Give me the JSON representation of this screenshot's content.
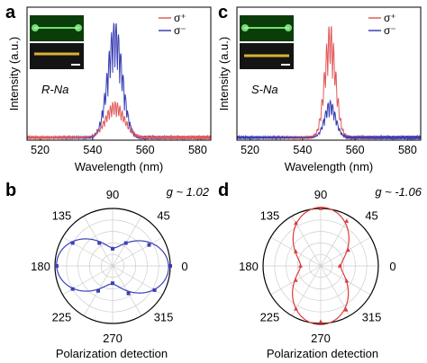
{
  "panels": {
    "a": {
      "letter": "a",
      "sample": "R-Na"
    },
    "b": {
      "letter": "b",
      "g_label": "g ~ 1.02"
    },
    "c": {
      "letter": "c",
      "sample": "S-Na"
    },
    "d": {
      "letter": "d",
      "g_label": "g ~ -1.06"
    }
  },
  "legend": {
    "sigma_plus": "σ⁺",
    "sigma_minus": "σ⁻"
  },
  "colors": {
    "sigma_plus": "#e05a5a",
    "sigma_minus": "#3a3fb5",
    "polar_b": "#3a3fb5",
    "polar_d": "#d93b3b"
  },
  "polar_angle_labels": [
    "90",
    "45",
    "0",
    "315",
    "270",
    "225",
    "180",
    "135"
  ],
  "polar_xlabel": "Polarization detection",
  "chart_data": [
    {
      "type": "line",
      "panel": "a",
      "xlabel": "Wavelength (nm)",
      "ylabel": "Intensity (a.u.)",
      "xlim": [
        515,
        585
      ],
      "x_ticks": [
        520,
        540,
        560,
        580
      ],
      "y_tick_labels": "none",
      "annotation": "R-Na",
      "series": [
        {
          "name": "σ⁺",
          "color": "#e05a5a",
          "peak_center": 548.5,
          "peak_height": 0.27,
          "peak_width": 5.0,
          "baseline": 0.02
        },
        {
          "name": "σ⁻",
          "color": "#3a3fb5",
          "peak_center": 548.5,
          "peak_height": 0.88,
          "peak_width": 4.0,
          "baseline": 0.02
        }
      ]
    },
    {
      "type": "line",
      "panel": "c",
      "xlabel": "Wavelength (nm)",
      "ylabel": "Intensity (a.u.)",
      "xlim": [
        515,
        585
      ],
      "x_ticks": [
        520,
        540,
        560,
        580
      ],
      "y_tick_labels": "none",
      "annotation": "S-Na",
      "series": [
        {
          "name": "σ⁺",
          "color": "#e05a5a",
          "peak_center": 550.5,
          "peak_height": 0.85,
          "peak_width": 3.0,
          "baseline": 0.02
        },
        {
          "name": "σ⁻",
          "color": "#3a3fb5",
          "peak_center": 550.5,
          "peak_height": 0.28,
          "peak_width": 3.0,
          "baseline": 0.02
        }
      ]
    },
    {
      "type": "scatter",
      "subtype": "polar",
      "panel": "b",
      "annotation": "g ~ 1.02",
      "color": "#3a3fb5",
      "xlabel": "Polarization detection",
      "angle_ticks_deg": [
        0,
        45,
        90,
        135,
        180,
        225,
        270,
        315
      ],
      "points": [
        {
          "angle": 0,
          "r": 1.0
        },
        {
          "angle": 30,
          "r": 0.73
        },
        {
          "angle": 60,
          "r": 0.46
        },
        {
          "angle": 90,
          "r": 0.3
        },
        {
          "angle": 120,
          "r": 0.46
        },
        {
          "angle": 150,
          "r": 0.8
        },
        {
          "angle": 180,
          "r": 0.97
        },
        {
          "angle": 210,
          "r": 0.8
        },
        {
          "angle": 240,
          "r": 0.5
        },
        {
          "angle": 270,
          "r": 0.3
        },
        {
          "angle": 300,
          "r": 0.55
        },
        {
          "angle": 330,
          "r": 0.84
        }
      ]
    },
    {
      "type": "scatter",
      "subtype": "polar",
      "panel": "d",
      "annotation": "g ~ -1.06",
      "color": "#d93b3b",
      "xlabel": "Polarization detection",
      "angle_ticks_deg": [
        0,
        45,
        90,
        135,
        180,
        225,
        270,
        315
      ],
      "points": [
        {
          "angle": 0,
          "r": 0.33
        },
        {
          "angle": 30,
          "r": 0.55
        },
        {
          "angle": 60,
          "r": 0.9
        },
        {
          "angle": 90,
          "r": 1.0
        },
        {
          "angle": 120,
          "r": 0.86
        },
        {
          "angle": 150,
          "r": 0.5
        },
        {
          "angle": 180,
          "r": 0.35
        },
        {
          "angle": 210,
          "r": 0.5
        },
        {
          "angle": 240,
          "r": 0.86
        },
        {
          "angle": 270,
          "r": 0.97
        },
        {
          "angle": 300,
          "r": 0.88
        },
        {
          "angle": 330,
          "r": 0.52
        }
      ]
    }
  ]
}
